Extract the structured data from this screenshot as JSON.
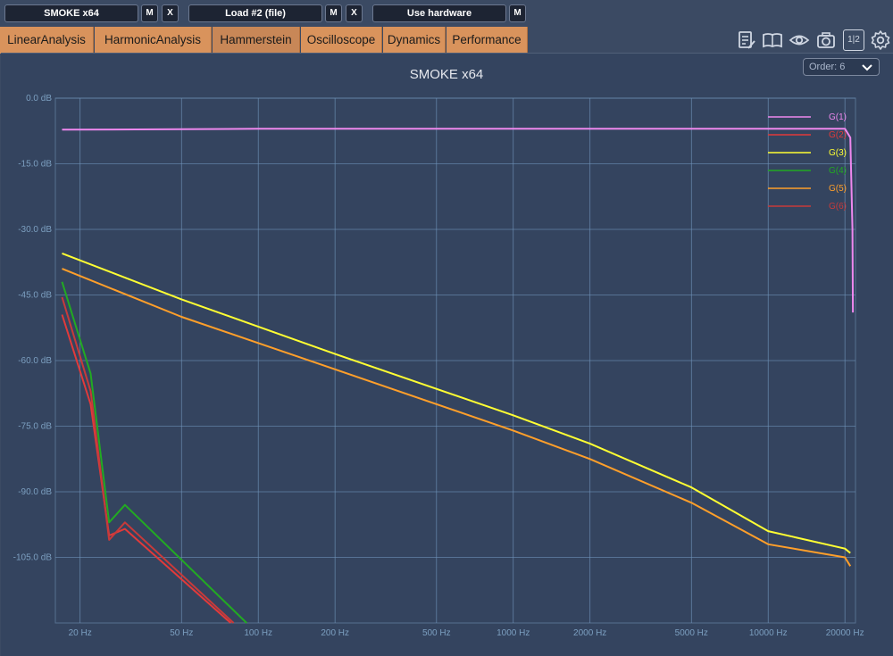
{
  "toolbar": {
    "slot1_label": "SMOKE x64",
    "slot2_label": "Load #2 (file)",
    "slot3_label": "Use hardware",
    "mute_label": "M",
    "close_label": "X"
  },
  "tabs": [
    {
      "label": "LinearAnalysis"
    },
    {
      "label": "HarmonicAnalysis"
    },
    {
      "label": "Hammerstein",
      "active": true
    },
    {
      "label": "Oscilloscope"
    },
    {
      "label": "Dynamics"
    },
    {
      "label": "Performance"
    }
  ],
  "tool_icons": [
    "notes-icon",
    "book-icon",
    "eye-icon",
    "camera-icon",
    "channels-icon",
    "gear-icon"
  ],
  "tool_channels_label": "1|2",
  "order_select": {
    "label": "Order: 6"
  },
  "colors": {
    "background": "#3b4a63",
    "plot_background": "#34445f",
    "grid": "#6f92b8",
    "tab": "#d9935c"
  },
  "chart_data": {
    "type": "line",
    "title": "SMOKE x64",
    "xscale": "log",
    "xlim": [
      16,
      22000
    ],
    "ylim": [
      -120,
      0
    ],
    "y_unit": "dB",
    "y_ticks": [
      "0.0 dB",
      "-15.0 dB",
      "-30.0 dB",
      "-45.0 dB",
      "-60.0 dB",
      "-75.0 dB",
      "-90.0 dB",
      "-105.0 dB"
    ],
    "x_ticks": [
      "20 Hz",
      "50 Hz",
      "100 Hz",
      "200 Hz",
      "500 Hz",
      "1000 Hz",
      "2000 Hz",
      "5000 Hz",
      "10000 Hz",
      "20000 Hz"
    ],
    "legend_position": "top-right",
    "series": [
      {
        "name": "G(1)",
        "color": "#ee88ee",
        "x": [
          17,
          50,
          100,
          1000,
          10000,
          20000,
          21000,
          21400,
          21500
        ],
        "y": [
          -7.2,
          -7.1,
          -7.0,
          -7.0,
          -7.0,
          -7.0,
          -9,
          -30,
          -49
        ]
      },
      {
        "name": "G(2)",
        "color": "#e23a3a",
        "x": [
          17,
          22,
          26,
          30,
          78
        ],
        "y": [
          -49.5,
          -70,
          -100,
          -98.5,
          -120
        ]
      },
      {
        "name": "G(3)",
        "color": "#ffff33",
        "x": [
          17,
          50,
          200,
          1000,
          2000,
          5000,
          10000,
          20000,
          21000
        ],
        "y": [
          -35.5,
          -46,
          -58.5,
          -72.5,
          -79,
          -89,
          -99,
          -103,
          -104
        ]
      },
      {
        "name": "G(4)",
        "color": "#22aa22",
        "x": [
          17,
          22,
          26,
          30,
          90
        ],
        "y": [
          -42,
          -63,
          -97,
          -93,
          -120
        ]
      },
      {
        "name": "G(5)",
        "color": "#ff9f2a",
        "x": [
          17,
          50,
          200,
          1000,
          2000,
          5000,
          10000,
          20000,
          21000
        ],
        "y": [
          -39,
          -50,
          -62,
          -76,
          -82.5,
          -92.5,
          -102,
          -105,
          -107
        ]
      },
      {
        "name": "G(6)",
        "color": "#c83a3a",
        "x": [
          17,
          22,
          26,
          30,
          80
        ],
        "y": [
          -45.5,
          -67,
          -101,
          -97,
          -120
        ]
      }
    ]
  }
}
